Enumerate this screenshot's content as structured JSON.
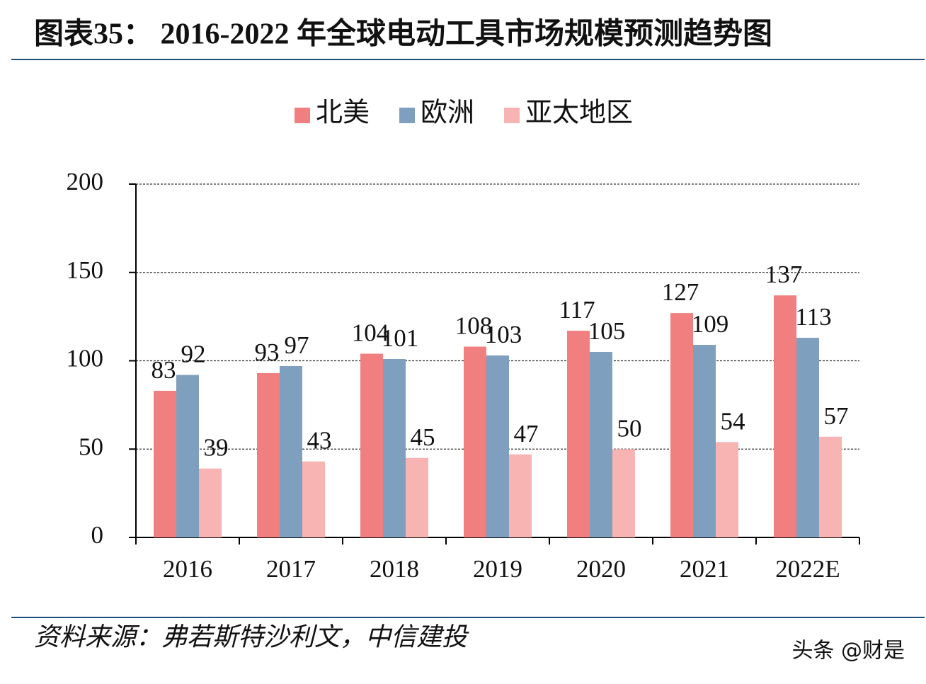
{
  "chart_data": {
    "type": "bar",
    "title": "图表35：  2016-2022 年全球电动工具市场规模预测趋势图",
    "categories": [
      "2016",
      "2017",
      "2018",
      "2019",
      "2020",
      "2021",
      "2022E"
    ],
    "series": [
      {
        "name": "北美",
        "color": "#f27f7f",
        "values": [
          83,
          93,
          104,
          108,
          117,
          127,
          137
        ]
      },
      {
        "name": "欧洲",
        "color": "#7f9fbe",
        "values": [
          92,
          97,
          101,
          103,
          105,
          109,
          113
        ]
      },
      {
        "name": "亚太地区",
        "color": "#f8b3b3",
        "values": [
          39,
          43,
          45,
          47,
          50,
          54,
          57
        ]
      }
    ],
    "ylim": [
      0,
      200
    ],
    "yticks": [
      0,
      50,
      100,
      150,
      200
    ],
    "grid": true,
    "legend": "top",
    "source": "资料来源：弗若斯特沙利文，中信建投",
    "watermark": "头条 @财是"
  }
}
